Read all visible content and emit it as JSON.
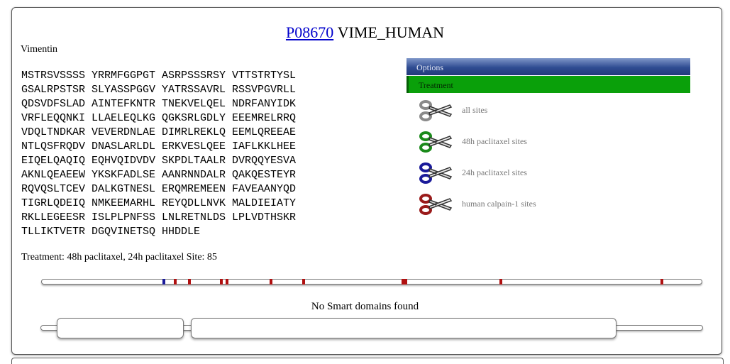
{
  "header": {
    "accession": "P08670",
    "entry_name": "VIME_HUMAN"
  },
  "protein": {
    "name": "Vimentin"
  },
  "sequence": [
    "MSTRSVSSSS YRRMFGGPGT ASRPSSSRSY VTTSTRTYSL",
    "GSALRPSTSR SLYASSPGGV YATRSSAVRL RSSVPGVRLL",
    "QDSVDFSLAD AINTEFKNTR TNEKVELQEL NDRFANYIDK",
    "VRFLEQQNKI LLAELEQLKG QGKSRLGDLY EEEMRELRRQ",
    "VDQLTNDKAR VEVERDNLAE DIMRLREKLQ EEMLQREEAE",
    "NTLQSFRQDV DNASLARLDL ERKVESLQEE IAFLKKLHEE",
    "EIQELQAQIQ EQHVQIDVDV SKPDLTAALR DVRQQYESVA",
    "AKNLQEAEEW YKSKFADLSE AANRNNDALR QAKQESTEYR",
    "RQVQSLTCEV DALKGTNESL ERQMREMEEN FAVEAANYQD",
    "TIGRLQDEIQ NMKEEMARHL REYQDLLNVK MALDIEIATY",
    "RKLLEGEESR ISLPLPNFSS LNLRETNLDS LPLVDTHSKR",
    "TLLIKTVETR DGQVINETSQ HHDDLE"
  ],
  "treatment_line": "Treatment: 48h paclitaxel, 24h paclitaxel Site: 85",
  "options": {
    "options_label": "Options",
    "treatment_label": "Treatment",
    "colors": {
      "options_bar": "#2f4c92",
      "treatment_bar": "#0aa00a"
    },
    "items": [
      {
        "label": "all sites",
        "icon": "scissors-grey-icon",
        "color": "#8a8a8a"
      },
      {
        "label": "48h paclitaxel sites",
        "icon": "scissors-green-icon",
        "color": "#1a8a1a"
      },
      {
        "label": "24h paclitaxel sites",
        "icon": "scissors-blue-icon",
        "color": "#1a1a9a"
      },
      {
        "label": "human calpain-1 sites",
        "icon": "scissors-red-icon",
        "color": "#9a1a1a"
      }
    ]
  },
  "site_track": {
    "sequence_length": 466,
    "sites": [
      {
        "position": 85,
        "type": "24h paclitaxel",
        "color": "#1a1a9a"
      },
      {
        "position": 93,
        "type": "human calpain-1",
        "color": "#b01010"
      },
      {
        "position": 103,
        "type": "human calpain-1",
        "color": "#b01010"
      },
      {
        "position": 126,
        "type": "human calpain-1",
        "color": "#b01010"
      },
      {
        "position": 130,
        "type": "human calpain-1",
        "color": "#b01010"
      },
      {
        "position": 161,
        "type": "human calpain-1",
        "color": "#b01010"
      },
      {
        "position": 184,
        "type": "human calpain-1",
        "color": "#b01010"
      },
      {
        "position": 254,
        "type": "human calpain-1",
        "color": "#b01010"
      },
      {
        "position": 256,
        "type": "human calpain-1",
        "color": "#b01010"
      },
      {
        "position": 323,
        "type": "human calpain-1",
        "color": "#b01010"
      },
      {
        "position": 437,
        "type": "human calpain-1",
        "color": "#b01010"
      }
    ]
  },
  "smart": {
    "message": "No Smart domains found"
  }
}
